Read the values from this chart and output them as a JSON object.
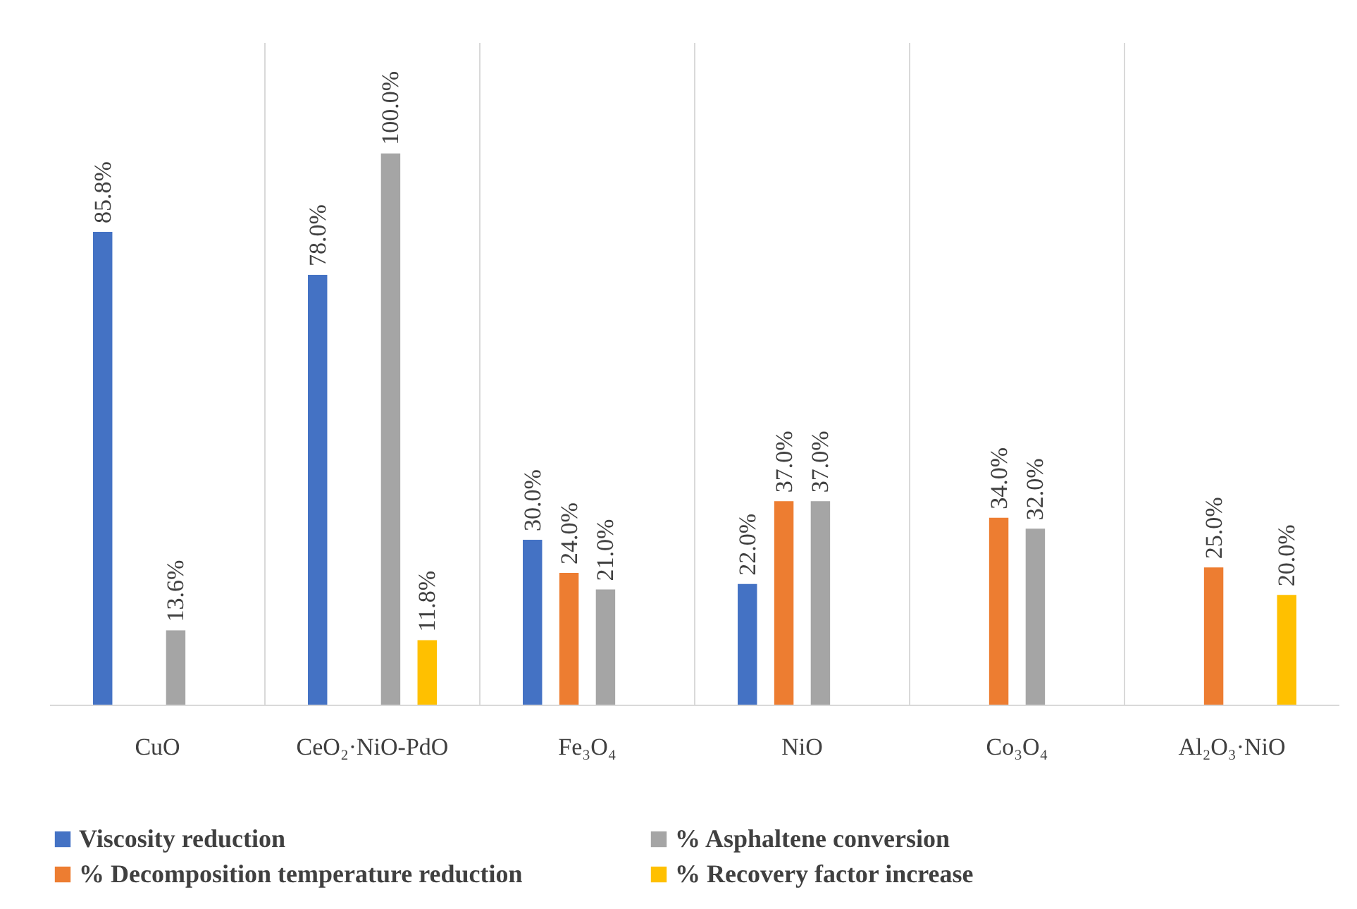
{
  "chart_data": {
    "type": "bar",
    "categories": [
      "CuO",
      "CeO₂·NiO-PdO",
      "Fe₃O₄",
      "NiO",
      "Co₃O₄",
      "Al₂O₃·NiO"
    ],
    "series": [
      {
        "name": "Viscosity reduction",
        "color": "#4472c4",
        "values": [
          85.8,
          78.0,
          30.0,
          22.0,
          null,
          null
        ],
        "value_labels": [
          "85.8%",
          "78.0%",
          "30.0%",
          "22.0%",
          null,
          null
        ]
      },
      {
        "name": "% Decomposition temperature reduction",
        "color": "#ed7d31",
        "values": [
          null,
          null,
          24.0,
          37.0,
          34.0,
          25.0
        ],
        "value_labels": [
          null,
          null,
          "24.0%",
          "37.0%",
          "34.0%",
          "25.0%"
        ]
      },
      {
        "name": "% Asphaltene conversion",
        "color": "#a5a5a5",
        "values": [
          13.6,
          100.0,
          21.0,
          37.0,
          32.0,
          null
        ],
        "value_labels": [
          "13.6%",
          "100.0%",
          "21.0%",
          "37.0%",
          "32.0%",
          null
        ]
      },
      {
        "name": "% Recovery factor increase",
        "color": "#ffc000",
        "values": [
          null,
          11.8,
          null,
          null,
          null,
          20.0
        ],
        "value_labels": [
          null,
          "11.8%",
          null,
          null,
          null,
          "20.0%"
        ]
      }
    ],
    "ylim": [
      0,
      120
    ],
    "grid": "x",
    "legend": "bottom",
    "tick_labels": "x"
  }
}
